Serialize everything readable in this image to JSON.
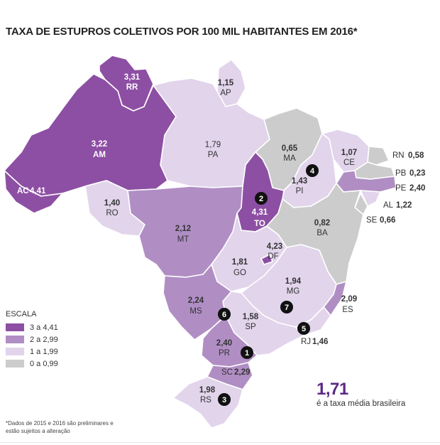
{
  "title": "TAXA DE ESTUPROS COLETIVOS POR 100 MIL HABITANTES EM 2016*",
  "colors": {
    "range_3_441": "#8d4fa3",
    "range_2_299": "#b08ec4",
    "range_1_199": "#e1d4eb",
    "range_0_099": "#cccccc",
    "marker": "#111111"
  },
  "states": [
    {
      "code": "RR",
      "value": "3,31",
      "range": "range_3_441"
    },
    {
      "code": "AP",
      "value": "1,15",
      "range": "range_1_199"
    },
    {
      "code": "AM",
      "value": "3,22",
      "range": "range_3_441"
    },
    {
      "code": "PA",
      "value": "1,79",
      "range": "range_1_199"
    },
    {
      "code": "MA",
      "value": "0,65",
      "range": "range_0_099"
    },
    {
      "code": "CE",
      "value": "1,07",
      "range": "range_1_199"
    },
    {
      "code": "RN",
      "value": "0,58",
      "range": "range_0_099"
    },
    {
      "code": "PB",
      "value": "0,23",
      "range": "range_0_099"
    },
    {
      "code": "PE",
      "value": "2,40",
      "range": "range_2_299"
    },
    {
      "code": "AL",
      "value": "1,22",
      "range": "range_1_199"
    },
    {
      "code": "SE",
      "value": "0,66",
      "range": "range_0_099"
    },
    {
      "code": "PI",
      "value": "1,43",
      "range": "range_1_199"
    },
    {
      "code": "AC",
      "value": "4,41",
      "range": "range_3_441"
    },
    {
      "code": "RO",
      "value": "1,40",
      "range": "range_1_199"
    },
    {
      "code": "TO",
      "value": "4,31",
      "range": "range_3_441"
    },
    {
      "code": "MT",
      "value": "2,12",
      "range": "range_2_299"
    },
    {
      "code": "BA",
      "value": "0,82",
      "range": "range_0_099"
    },
    {
      "code": "DF",
      "value": "4,23",
      "range": "range_3_441"
    },
    {
      "code": "GO",
      "value": "1,81",
      "range": "range_1_199"
    },
    {
      "code": "MG",
      "value": "1,94",
      "range": "range_1_199"
    },
    {
      "code": "ES",
      "value": "2,09",
      "range": "range_2_299"
    },
    {
      "code": "MS",
      "value": "2,24",
      "range": "range_2_299"
    },
    {
      "code": "SP",
      "value": "1,58",
      "range": "range_1_199"
    },
    {
      "code": "RJ",
      "value": "1,46",
      "range": "range_1_199"
    },
    {
      "code": "PR",
      "value": "2,40",
      "range": "range_2_299"
    },
    {
      "code": "SC",
      "value": "2,29",
      "range": "range_2_299"
    },
    {
      "code": "RS",
      "value": "1,98",
      "range": "range_1_199"
    }
  ],
  "markers": [
    "1",
    "2",
    "3",
    "4",
    "5",
    "6",
    "7"
  ],
  "legend": {
    "title": "ESCALA",
    "items": [
      {
        "label": "3 a 4,41",
        "range": "range_3_441"
      },
      {
        "label": "2 a 2,99",
        "range": "range_2_299"
      },
      {
        "label": "1 a 1,99",
        "range": "range_1_199"
      },
      {
        "label": "0 a 0,99",
        "range": "range_0_099"
      }
    ]
  },
  "average": {
    "value": "1,71",
    "text": "é a taxa média brasileira"
  },
  "footnote": "*Dados de 2015 e 2016 são preliminares e estão sujeitos a alteração"
}
